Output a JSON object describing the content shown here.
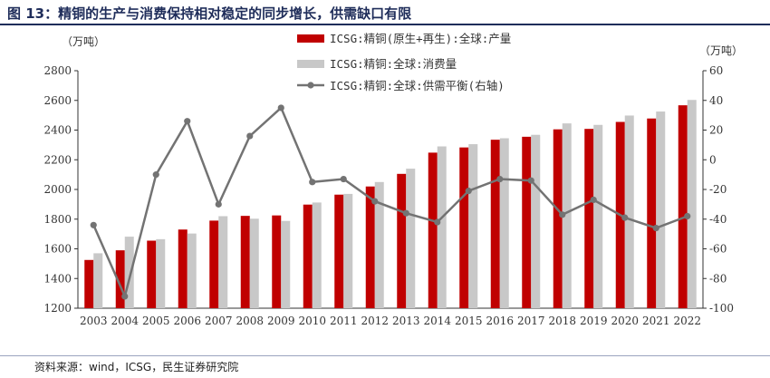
{
  "title": "图 13：精铜的生产与消费保持相对稳定的同步增长，供需缺口有限",
  "source": "资料来源：wind，ICSG，民生证券研究院",
  "chart_data": {
    "type": "bar",
    "categories": [
      "2003",
      "2004",
      "2005",
      "2006",
      "2007",
      "2008",
      "2009",
      "2010",
      "2011",
      "2012",
      "2013",
      "2014",
      "2015",
      "2016",
      "2017",
      "2018",
      "2019",
      "2020",
      "2021",
      "2022"
    ],
    "left_unit": "（万吨）",
    "right_unit": "（万吨）",
    "ylim": [
      1200,
      2800
    ],
    "y_ticks": [
      1200,
      1400,
      1600,
      1800,
      2000,
      2200,
      2400,
      2600,
      2800
    ],
    "y2lim": [
      -100,
      60
    ],
    "y2_ticks": [
      -100,
      -80,
      -60,
      -40,
      -20,
      0,
      20,
      40,
      60
    ],
    "grid": false,
    "legend_position": "top-right",
    "series": [
      {
        "name": "ICSG:精铜(原生+再生):全球:产量",
        "kind": "bar",
        "axis": "left",
        "color": "#c00000",
        "values": [
          1525,
          1590,
          1655,
          1730,
          1790,
          1822,
          1825,
          1898,
          1965,
          2020,
          2105,
          2248,
          2283,
          2335,
          2355,
          2405,
          2408,
          2455,
          2478,
          2567
        ]
      },
      {
        "name": "ICSG:精铜:全球:消费量",
        "kind": "bar",
        "axis": "left",
        "color": "#c8c8c8",
        "values": [
          1570,
          1682,
          1665,
          1703,
          1820,
          1803,
          1788,
          1912,
          1970,
          2050,
          2140,
          2290,
          2305,
          2345,
          2368,
          2445,
          2435,
          2498,
          2525,
          2603
        ]
      },
      {
        "name": "ICSG:精铜:全球:供需平衡(右轴)",
        "kind": "line",
        "axis": "right",
        "color": "#737373",
        "values": [
          -44,
          -92,
          -10,
          26,
          -30,
          16,
          35,
          -15,
          -13,
          -28,
          -36,
          -42,
          -21,
          -13,
          -14,
          -37,
          -27,
          -39,
          -46,
          -38
        ]
      }
    ]
  }
}
